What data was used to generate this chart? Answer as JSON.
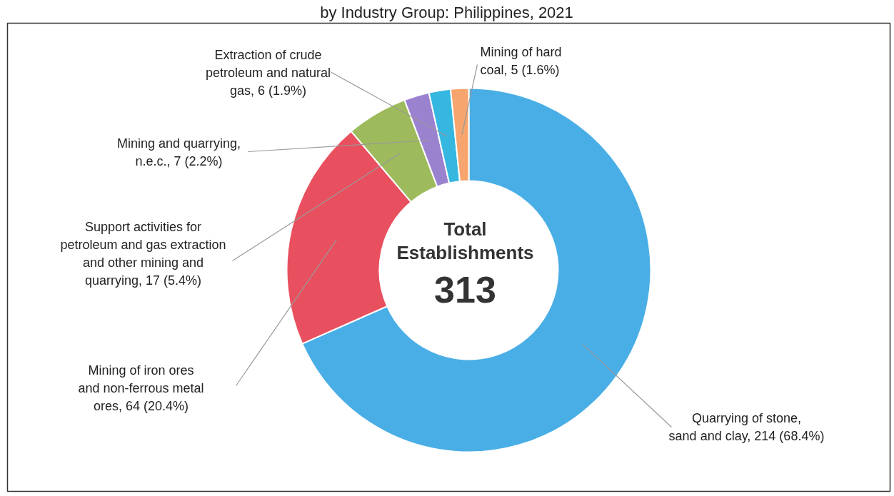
{
  "chart_data": {
    "type": "donut",
    "title": "by Industry Group: Philippines, 2021",
    "categories": [
      "Quarrying of stone, sand and clay",
      "Mining of iron ores and non-ferrous metal ores",
      "Support activities for petroleum and gas extraction and other mining and quarrying",
      "Mining and quarrying, n.e.c.",
      "Extraction of crude petroleum and natural gas",
      "Mining of hard coal"
    ],
    "values": [
      214,
      64,
      17,
      7,
      6,
      5
    ],
    "value_labels": [
      "214 (68.4%)",
      "64 (20.4%)",
      "17 (5.4%)",
      "7 (2.2%)",
      "6 (1.9%)",
      "5 (1.6%)"
    ],
    "colors": [
      "#4aaee6",
      "#e9505f",
      "#9dbb5c",
      "#9b82cf",
      "#35b7e0",
      "#f7a56e"
    ],
    "annotations": [
      "Total",
      "Establishments",
      "313"
    ]
  }
}
